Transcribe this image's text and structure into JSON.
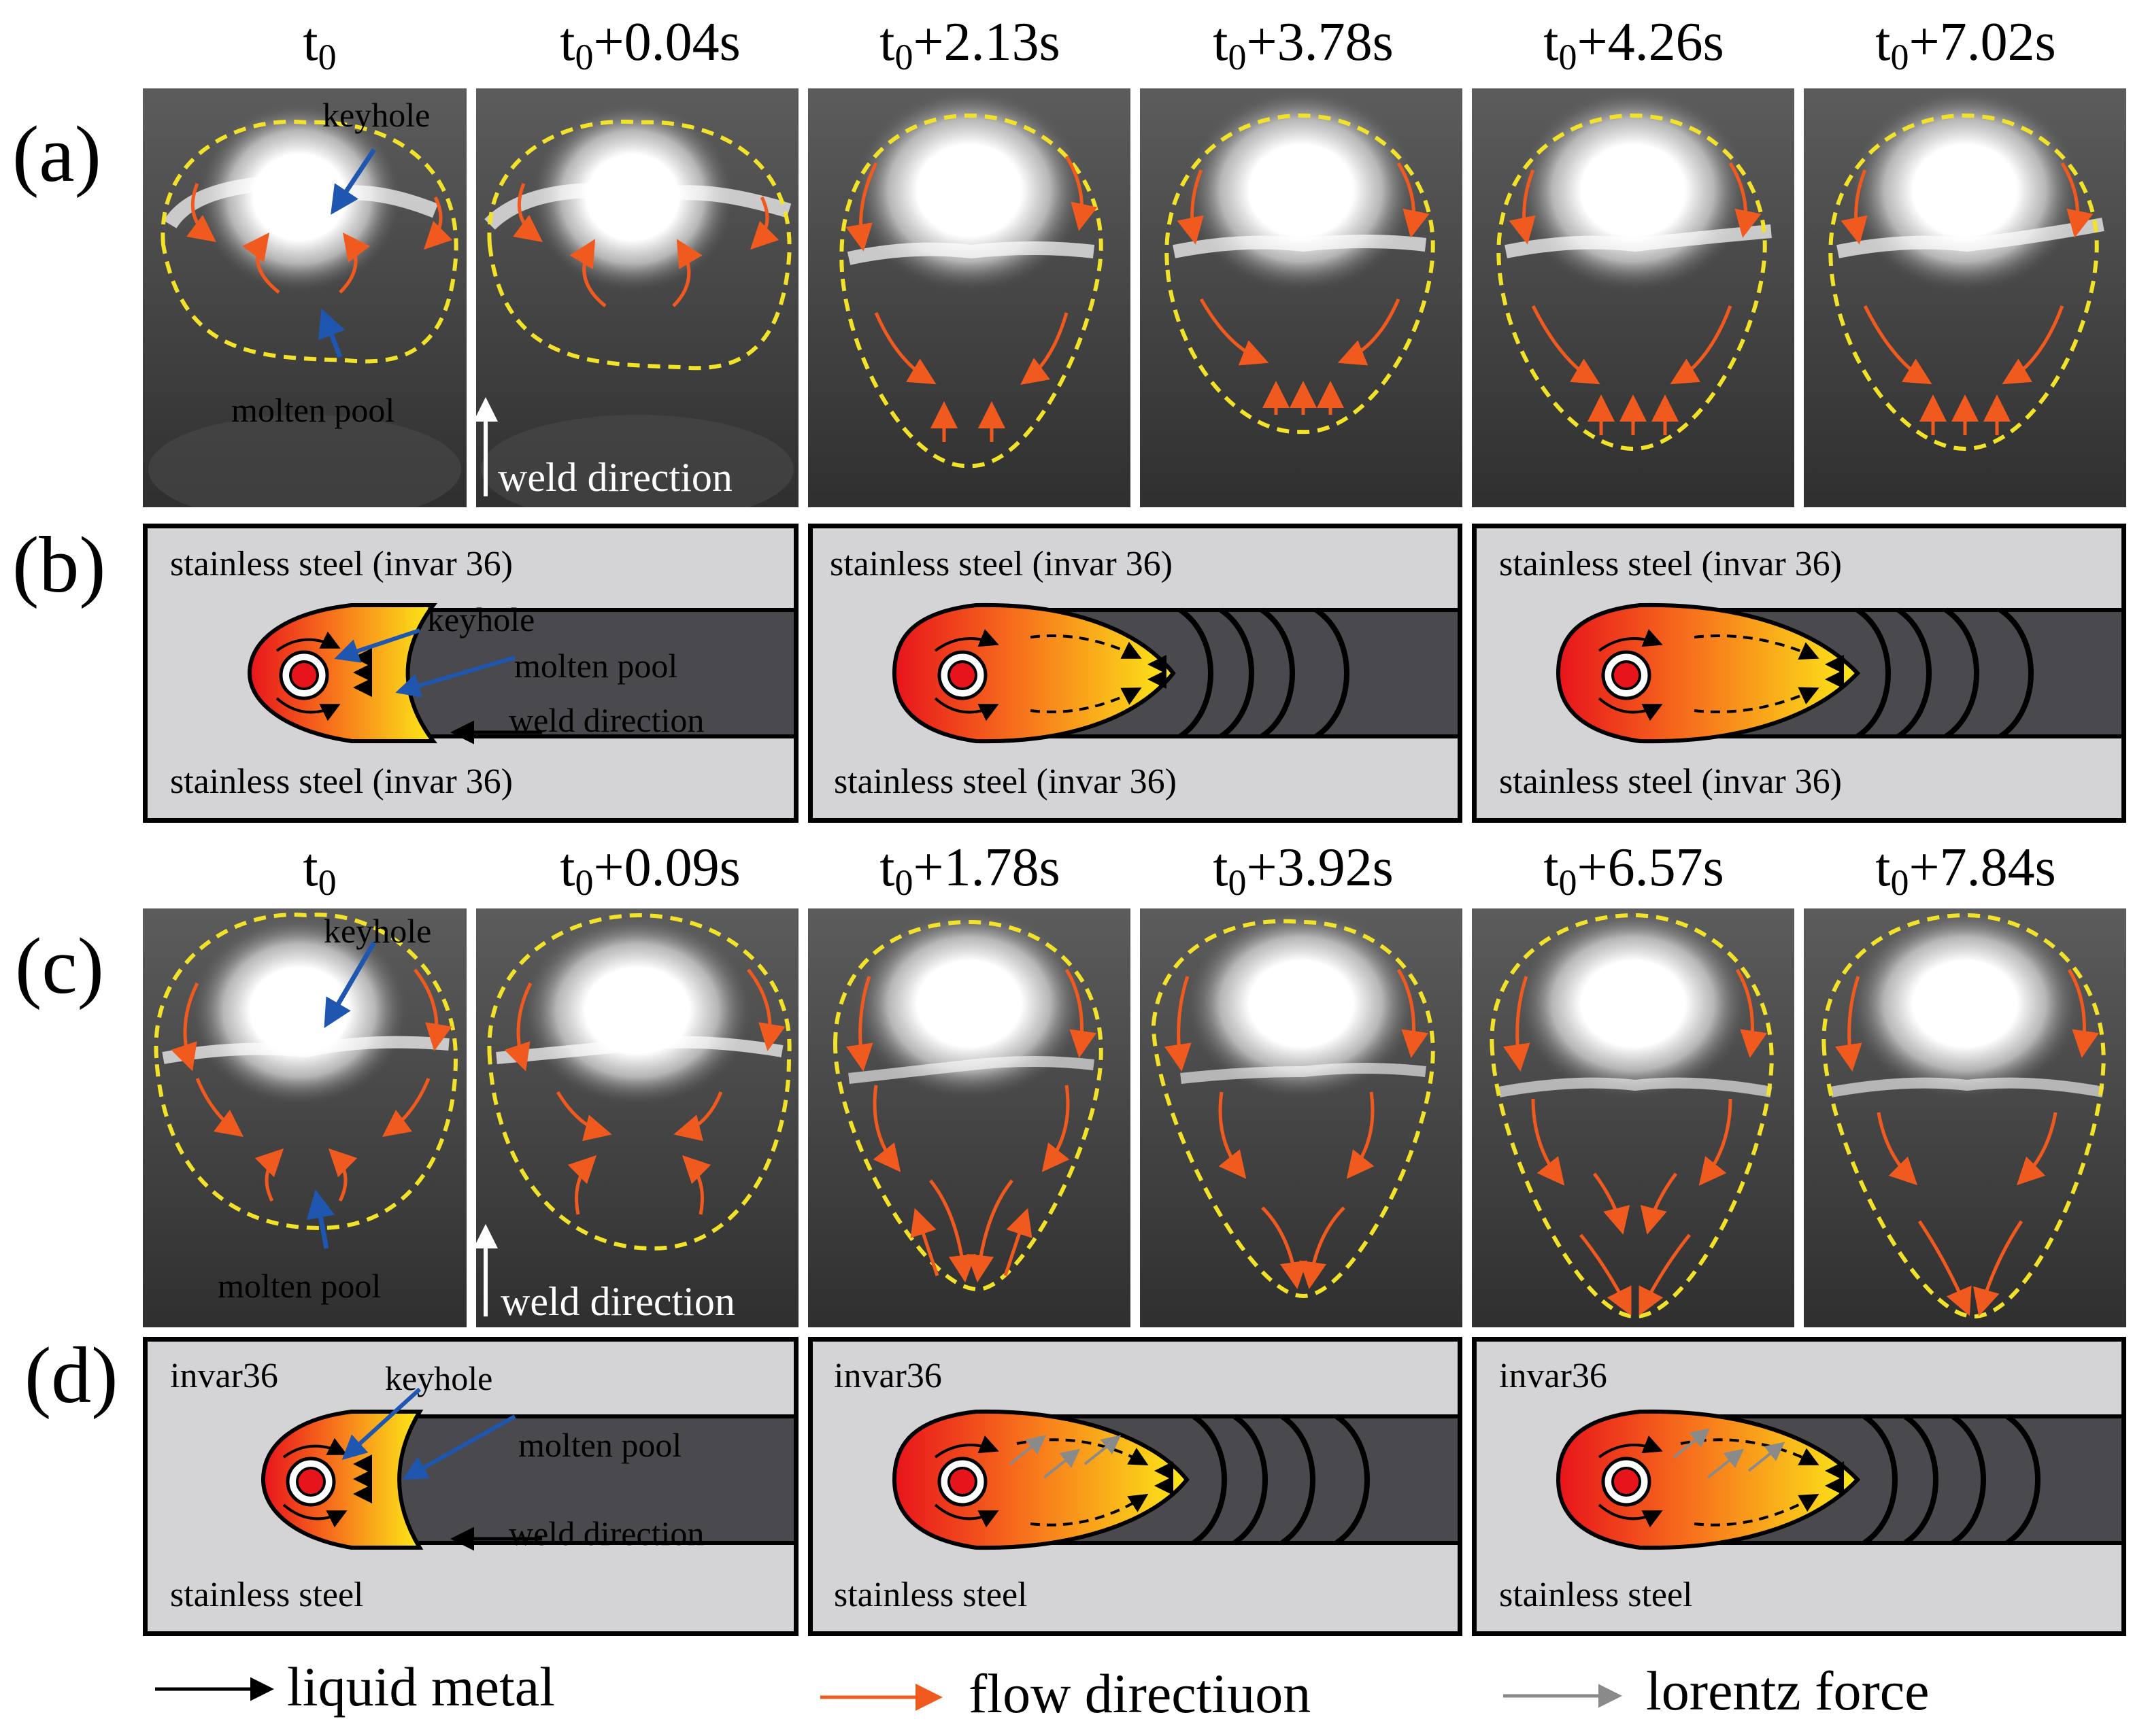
{
  "figure": {
    "panel_labels": {
      "a": "(a)",
      "b": "(b)",
      "c": "(c)",
      "d": "(d)"
    },
    "time_base": "t",
    "time_sub": "0",
    "row_a_times": [
      "",
      "+0.04s",
      "+2.13s",
      "+3.78s",
      "+4.26s",
      "+7.02s"
    ],
    "row_c_times": [
      "",
      "+0.09s",
      "+1.78s",
      "+3.92s",
      "+6.57s",
      "+7.84s"
    ],
    "photo_annotations": {
      "keyhole": "keyhole",
      "molten_pool": "molten pool",
      "weld_direction": "weld direction"
    },
    "schematic_b": {
      "top_material": "stainless steel (invar 36)",
      "bottom_material": "stainless steel (invar 36)",
      "keyhole": "keyhole",
      "molten_pool": "molten pool",
      "weld_direction": "weld direction"
    },
    "schematic_d": {
      "top_material": "invar36",
      "bottom_material": "stainless steel",
      "keyhole": "keyhole",
      "molten_pool": "molten pool",
      "weld_direction": "weld direction"
    },
    "legend": {
      "liquid_metal": "liquid metal",
      "flow_direction": "flow directiuon",
      "lorentz_force": "lorentz force"
    },
    "colors": {
      "flow_arrow": "#f05a1e",
      "pointer_arrow": "#1f56b0",
      "boundary_dash": "#f2e32a",
      "lorentz_arrow": "#8a8a8a",
      "steel_bg": "#d4d4d6",
      "weld_seam": "#4a4a4e"
    }
  }
}
